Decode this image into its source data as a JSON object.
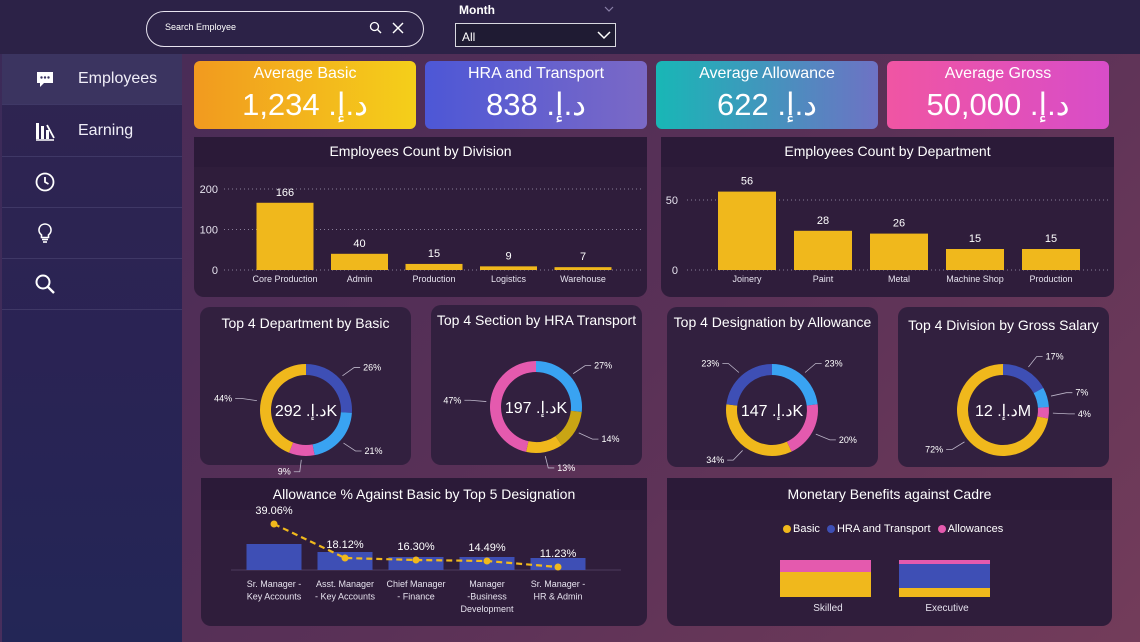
{
  "search": {
    "placeholder": "Search Employee"
  },
  "month": {
    "label": "Month",
    "selected": "All"
  },
  "sidebar": {
    "items": [
      {
        "label": "Employees",
        "icon": "chat-icon"
      },
      {
        "label": "Earning",
        "icon": "bar-chart-icon"
      },
      {
        "label": "",
        "icon": "clock-icon"
      },
      {
        "label": "",
        "icon": "lightbulb-icon"
      },
      {
        "label": "",
        "icon": "search-icon"
      }
    ]
  },
  "kpis": [
    {
      "title": "Average Basic",
      "value": "د.إ. 1,234",
      "color_from": "#f29a1f",
      "color_to": "#f4cf1a"
    },
    {
      "title": "HRA and Transport",
      "value": "د.إ. 838",
      "color_from": "#4d57d6",
      "color_to": "#7b69c6"
    },
    {
      "title": "Average Allowance",
      "value": "د.إ. 622",
      "color_from": "#18b7b6",
      "color_to": "#6e72c4"
    },
    {
      "title": "Average Gross",
      "value": "د.إ. 50,000",
      "color_from": "#f055a3",
      "color_to": "#d84dc8"
    }
  ],
  "charts": {
    "division": {
      "title": "Employees Count by Division"
    },
    "department": {
      "title": "Employees Count by Department"
    },
    "basic": {
      "title": "Top 4 Department by Basic",
      "center": "د.إ. 292K"
    },
    "hra": {
      "title": "Top 4 Section by HRA Transport",
      "center": "د.إ. 197K"
    },
    "allow": {
      "title": "Top 4 Designation by Allowance",
      "center": "د.إ. 147K"
    },
    "gross": {
      "title": "Top 4 Division by Gross Salary",
      "center": "د.إ. 12M"
    },
    "pct": {
      "title": "Allowance % Against Basic by Top 5 Designation"
    },
    "monetary": {
      "title": "Monetary Benefits against Cadre"
    }
  },
  "chart_data": [
    {
      "type": "bar",
      "title": "Employees Count by Division",
      "categories": [
        "Core Production",
        "Admin",
        "Production",
        "Logistics",
        "Warehouse"
      ],
      "values": [
        166,
        40,
        15,
        9,
        7
      ],
      "yticks": [
        "0",
        "100",
        "200"
      ],
      "ylim": [
        0,
        200
      ],
      "color": "#f0b81c"
    },
    {
      "type": "bar",
      "title": "Employees Count by Department",
      "categories": [
        "Joinery",
        "Paint",
        "Metal",
        "Machine Shop",
        "Production"
      ],
      "values": [
        56,
        28,
        26,
        15,
        15
      ],
      "yticks": [
        "0",
        "50"
      ],
      "ylim": [
        0,
        60
      ],
      "color": "#f0b81c"
    },
    {
      "type": "pie",
      "title": "Top 4 Department by Basic",
      "slices": [
        {
          "pct": 26,
          "label": "26%",
          "color": "#3e4fb5"
        },
        {
          "pct": 21,
          "label": "21%",
          "color": "#39a3f2"
        },
        {
          "pct": 9,
          "label": "9%",
          "color": "#e45aae"
        },
        {
          "pct": 44,
          "label": "44%",
          "color": "#f0b81c"
        }
      ]
    },
    {
      "type": "pie",
      "title": "Top 4 Section by HRA Transport",
      "slices": [
        {
          "pct": 27,
          "label": "27%",
          "color": "#39a3f2"
        },
        {
          "pct": 14,
          "label": "14%",
          "color": "#c9a514"
        },
        {
          "pct": 13,
          "label": "13%",
          "color": "#f0b81c"
        },
        {
          "pct": 47,
          "label": "47%",
          "color": "#e45aae"
        }
      ]
    },
    {
      "type": "pie",
      "title": "Top 4 Designation by Allowance",
      "slices": [
        {
          "pct": 23,
          "label": "23%",
          "color": "#39a3f2"
        },
        {
          "pct": 20,
          "label": "20%",
          "color": "#e45aae"
        },
        {
          "pct": 34,
          "label": "34%",
          "color": "#f0b81c"
        },
        {
          "pct": 23,
          "label": "23%",
          "color": "#3e4fb5"
        }
      ]
    },
    {
      "type": "pie",
      "title": "Top 4 Division by Gross Salary",
      "slices": [
        {
          "pct": 17,
          "label": "17%",
          "color": "#3e4fb5"
        },
        {
          "pct": 7,
          "label": "7%",
          "color": "#39a3f2"
        },
        {
          "pct": 4,
          "label": "4%",
          "color": "#e45aae"
        },
        {
          "pct": 72,
          "label": "72%",
          "color": "#f0b81c"
        }
      ]
    },
    {
      "type": "bar",
      "title": "Allowance % Against Basic by Top 5 Designation",
      "categories": [
        "Sr. Manager - Key Accounts",
        "Asst. Manager - Key Accounts",
        "Chief Manager - Finance",
        "Manager -Business Development",
        "Sr. Manager - HR & Admin"
      ],
      "category_lines": [
        [
          "Sr. Manager -",
          "Key Accounts"
        ],
        [
          "Asst. Manager",
          "- Key Accounts"
        ],
        [
          "Chief Manager",
          "- Finance"
        ],
        [
          "Manager",
          "-Business",
          "Development"
        ],
        [
          "Sr. Manager -",
          "HR & Admin"
        ]
      ],
      "values": [
        39.06,
        18.12,
        16.3,
        14.49,
        11.23
      ],
      "labels": [
        "39.06%",
        "18.12%",
        "16.30%",
        "14.49%",
        "11.23%"
      ],
      "bar_color": "#3e4fb5",
      "line_color": "#f0b81c"
    },
    {
      "type": "bar",
      "title": "Monetary Benefits against Cadre",
      "categories": [
        "Skilled",
        "Executive"
      ],
      "series": [
        {
          "name": "Basic",
          "color": "#f0b81c"
        },
        {
          "name": "HRA and Transport",
          "color": "#3e4fb5"
        },
        {
          "name": "Allowances",
          "color": "#e45aae"
        }
      ]
    }
  ]
}
